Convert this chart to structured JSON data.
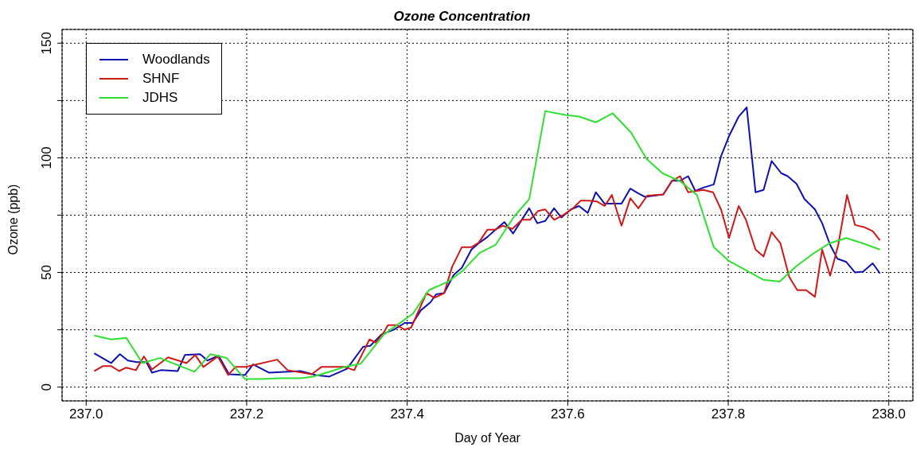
{
  "chart_data": {
    "type": "line",
    "title": "Ozone Concentration",
    "xlabel": "Day of Year",
    "ylabel": "Ozone (ppb)",
    "xlim": [
      236.97,
      238.03
    ],
    "xticks": [
      {
        "value": 237,
        "label": "237.0"
      },
      {
        "value": 237.2,
        "label": "237.2"
      },
      {
        "value": 237.4,
        "label": "237.4"
      },
      {
        "value": 237.6,
        "label": "237.6"
      },
      {
        "value": 237.8,
        "label": "237.8"
      },
      {
        "value": 238,
        "label": "238.0"
      }
    ],
    "ylim": [
      -6,
      156
    ],
    "yticks": [
      0,
      {
        "value": 25,
        "label": null
      },
      50,
      {
        "value": 75,
        "label": null
      },
      100,
      {
        "value": 125,
        "label": null
      },
      150
    ],
    "grid": true,
    "legend": "top left",
    "marker": "none",
    "line_style": "solid",
    "series": [
      {
        "name": "Woodlands",
        "color": "#1010b0",
        "x": [
          237.01,
          237.031,
          237.042,
          237.052,
          237.063,
          237.075,
          237.082,
          237.093,
          237.114,
          237.123,
          237.142,
          237.151,
          237.165,
          237.178,
          237.198,
          237.208,
          237.228,
          237.267,
          237.286,
          237.303,
          237.325,
          237.345,
          237.354,
          237.368,
          237.383,
          237.397,
          237.407,
          237.417,
          237.429,
          237.436,
          237.446,
          237.458,
          237.468,
          237.48,
          237.49,
          237.5,
          237.51,
          237.521,
          237.532,
          237.541,
          237.552,
          237.562,
          237.572,
          237.583,
          237.592,
          237.604,
          237.614,
          237.625,
          237.635,
          237.646,
          237.667,
          237.678,
          237.688,
          237.696,
          237.719,
          237.73,
          237.74,
          237.75,
          237.759,
          237.769,
          237.782,
          237.791,
          237.801,
          237.813,
          237.823,
          237.834,
          237.844,
          237.854,
          237.866,
          237.874,
          237.885,
          237.895,
          237.908,
          237.917,
          237.927,
          237.936,
          237.947,
          237.958,
          237.968,
          237.98,
          237.989
        ],
        "values": [
          14.8,
          10.5,
          14.4,
          11.6,
          10.9,
          10.9,
          6.3,
          7.4,
          7,
          14,
          14.4,
          11.6,
          13.7,
          5.6,
          5.3,
          9.9,
          6.3,
          7,
          5.3,
          4.6,
          8,
          17.6,
          18,
          23,
          25,
          28,
          28,
          33.5,
          37,
          40.5,
          41,
          49,
          52,
          60,
          63,
          65.5,
          68.7,
          72,
          67,
          72,
          78,
          71.5,
          72.5,
          78,
          74,
          77.5,
          79,
          76,
          85,
          80,
          80,
          86.6,
          84.5,
          83,
          84,
          90,
          90,
          92,
          85.6,
          87,
          88.4,
          100.7,
          109.5,
          118,
          122,
          85,
          86,
          98.6,
          93.3,
          92,
          88.7,
          82,
          77.5,
          71.5,
          62,
          56,
          54.6,
          50,
          50.4,
          54,
          49.6
        ]
      },
      {
        "name": "SHNF",
        "color": "#d01818",
        "x": [
          237.01,
          237.021,
          237.031,
          237.041,
          237.05,
          237.062,
          237.072,
          237.082,
          237.102,
          237.125,
          237.136,
          237.146,
          237.164,
          237.177,
          237.186,
          237.199,
          237.238,
          237.251,
          237.281,
          237.293,
          237.322,
          237.334,
          237.353,
          237.361,
          237.371,
          237.376,
          237.387,
          237.397,
          237.405,
          237.424,
          237.434,
          237.446,
          237.456,
          237.468,
          237.48,
          237.489,
          237.5,
          237.51,
          237.519,
          237.531,
          237.543,
          237.553,
          237.563,
          237.572,
          237.583,
          237.594,
          237.606,
          237.616,
          237.626,
          237.636,
          237.646,
          237.655,
          237.667,
          237.678,
          237.688,
          237.699,
          237.719,
          237.73,
          237.74,
          237.75,
          237.769,
          237.781,
          237.791,
          237.801,
          237.813,
          237.822,
          237.834,
          237.844,
          237.854,
          237.865,
          237.876,
          237.886,
          237.897,
          237.908,
          237.917,
          237.927,
          237.937,
          237.948,
          237.958,
          237.97,
          237.98,
          237.989
        ],
        "values": [
          7,
          9.2,
          9.2,
          7,
          8.5,
          7.4,
          13.4,
          7.7,
          13,
          10.5,
          14,
          8.8,
          13.4,
          5.3,
          8.8,
          8.8,
          12,
          7.4,
          5.6,
          8.8,
          8.8,
          7.4,
          20.8,
          19.4,
          24,
          27,
          27,
          25,
          26,
          41,
          39,
          41,
          52.5,
          61,
          61,
          63,
          68.7,
          68.7,
          70.4,
          69,
          73,
          73,
          76.8,
          77.5,
          73,
          75,
          77.8,
          81.3,
          81.3,
          81,
          79,
          83.8,
          70.4,
          82.4,
          78,
          83.5,
          84,
          90,
          92,
          85,
          86,
          85,
          77.5,
          65,
          79,
          73,
          60,
          57,
          67.6,
          62.7,
          48,
          42.3,
          42.3,
          39.4,
          60,
          48.6,
          62,
          83.8,
          70.7,
          69.7,
          68,
          64
        ]
      },
      {
        "name": "JDHS",
        "color": "#30e030",
        "x": [
          237.01,
          237.031,
          237.05,
          237.07,
          237.092,
          237.135,
          237.155,
          237.175,
          237.198,
          237.218,
          237.242,
          237.267,
          237.283,
          237.306,
          237.322,
          237.342,
          237.371,
          237.407,
          237.427,
          237.451,
          237.47,
          237.49,
          237.51,
          237.533,
          237.552,
          237.572,
          237.597,
          237.614,
          237.635,
          237.656,
          237.679,
          237.698,
          237.718,
          237.74,
          237.761,
          237.782,
          237.801,
          237.82,
          237.844,
          237.864,
          237.885,
          237.907,
          237.926,
          237.947,
          237.968,
          237.989
        ],
        "values": [
          22.5,
          20.8,
          21.5,
          10.5,
          12.7,
          6.7,
          14.4,
          12.7,
          3.5,
          3.5,
          3.9,
          3.9,
          4.6,
          7,
          8.8,
          10.2,
          23,
          32,
          42.3,
          46,
          51,
          58.5,
          62,
          74.3,
          82,
          120.4,
          118.7,
          118,
          115.5,
          119.4,
          111,
          99.6,
          93.3,
          89.8,
          83.8,
          61,
          55,
          51.4,
          46.8,
          46,
          52.8,
          58.5,
          62.7,
          65,
          62.7,
          60
        ]
      }
    ]
  }
}
